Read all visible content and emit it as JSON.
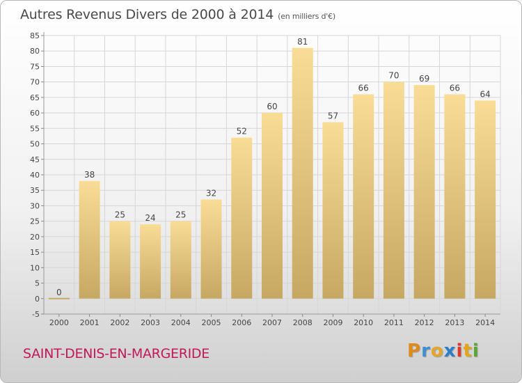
{
  "header": {
    "title": "Autres Revenus Divers de 2000 à 2014",
    "unit": "(en milliers d'€)"
  },
  "footer": {
    "place": "SAINT-DENIS-EN-MARGERIDE",
    "logo_letters": [
      "P",
      "r",
      "o",
      "x",
      "i",
      "t",
      "i"
    ],
    "logo_colors": [
      "#e08a1c",
      "#3f8fd0",
      "#e3a52a",
      "#2c7ec7",
      "#d93a2b",
      "#e6a519",
      "#5aa832"
    ]
  },
  "colors": {
    "bar_top": "#f9dc96",
    "bar_bottom": "#c6a862",
    "grid": "#d6d6d6",
    "axis_text": "#444444",
    "place_text": "#c2185b"
  },
  "chart_data": {
    "type": "bar",
    "title": "Autres Revenus Divers de 2000 à 2014",
    "categories": [
      "2000",
      "2001",
      "2002",
      "2003",
      "2004",
      "2005",
      "2006",
      "2007",
      "2008",
      "2009",
      "2010",
      "2011",
      "2012",
      "2013",
      "2014"
    ],
    "values": [
      0,
      38,
      25,
      24,
      25,
      32,
      52,
      60,
      81,
      57,
      66,
      70,
      69,
      66,
      64
    ],
    "ylim": [
      -5,
      85
    ],
    "yticks": [
      -5,
      0,
      5,
      10,
      15,
      20,
      25,
      30,
      35,
      40,
      45,
      50,
      55,
      60,
      65,
      70,
      75,
      80,
      85
    ],
    "grid": true,
    "legend": "none",
    "xlabel": "",
    "ylabel": ""
  }
}
